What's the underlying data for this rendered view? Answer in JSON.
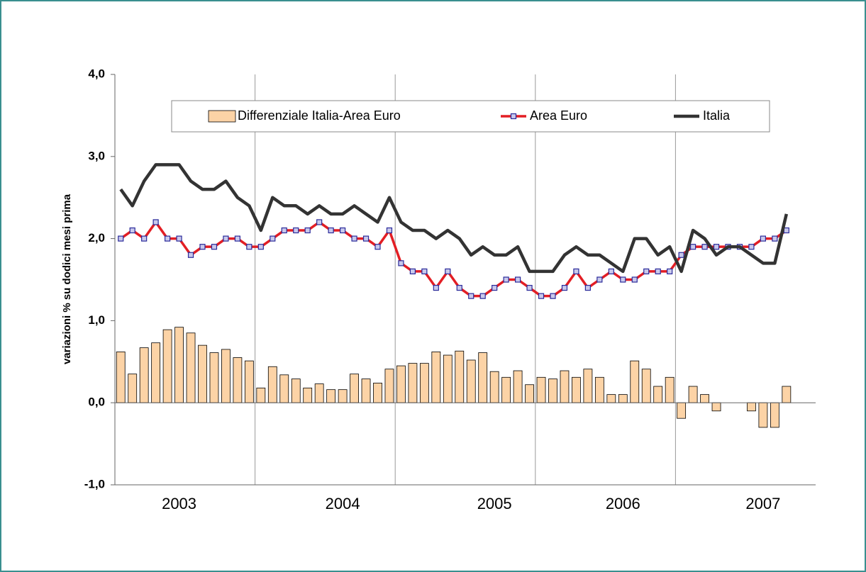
{
  "chart_data": {
    "type": "bar-line",
    "y_label": "variazioni % su dodici mesi prima",
    "categories": [
      null,
      null,
      null,
      null,
      null,
      "2003",
      null,
      null,
      null,
      null,
      null,
      null,
      null,
      null,
      null,
      null,
      null,
      null,
      null,
      "2004",
      null,
      null,
      null,
      null,
      null,
      null,
      null,
      null,
      null,
      null,
      null,
      null,
      "2005",
      null,
      null,
      null,
      null,
      null,
      null,
      null,
      null,
      null,
      null,
      "2006",
      null,
      null,
      null,
      null,
      null,
      null,
      null,
      null,
      null,
      null,
      null,
      "2007",
      null,
      null
    ],
    "series": [
      {
        "name": "Differenziale Italia-Area Euro",
        "kind": "bar",
        "color": "#fcd3a6",
        "values": [
          0.62,
          0.35,
          0.67,
          0.73,
          0.89,
          0.92,
          0.85,
          0.7,
          0.61,
          0.65,
          0.55,
          0.51,
          0.18,
          0.44,
          0.34,
          0.29,
          0.18,
          0.23,
          0.16,
          0.16,
          0.35,
          0.29,
          0.24,
          0.41,
          0.45,
          0.48,
          0.48,
          0.62,
          0.58,
          0.63,
          0.52,
          0.61,
          0.38,
          0.31,
          0.39,
          0.22,
          0.31,
          0.29,
          0.39,
          0.31,
          0.41,
          0.31,
          0.1,
          0.1,
          0.51,
          0.41,
          0.2,
          0.31,
          -0.19,
          0.2,
          0.1,
          -0.1,
          0,
          0,
          -0.1,
          -0.3,
          -0.3,
          0.2
        ]
      },
      {
        "name": "Area Euro",
        "kind": "line-marker",
        "color": "#e31e24",
        "values": [
          2.0,
          2.1,
          2.0,
          2.2,
          2.0,
          2.0,
          1.8,
          1.9,
          1.9,
          2.0,
          2.0,
          1.9,
          1.9,
          2.0,
          2.1,
          2.1,
          2.1,
          2.2,
          2.1,
          2.1,
          2.0,
          2.0,
          1.9,
          2.1,
          1.7,
          1.6,
          1.6,
          1.4,
          1.6,
          1.4,
          1.3,
          1.3,
          1.4,
          1.5,
          1.5,
          1.4,
          1.3,
          1.3,
          1.4,
          1.6,
          1.4,
          1.5,
          1.6,
          1.5,
          1.5,
          1.6,
          1.6,
          1.6,
          1.8,
          1.9,
          1.9,
          1.9,
          1.9,
          1.9,
          1.9,
          2.0,
          2.0,
          2.1
        ]
      },
      {
        "name": "Italia",
        "kind": "line",
        "color": "#333333",
        "values": [
          2.6,
          2.4,
          2.7,
          2.9,
          2.9,
          2.9,
          2.7,
          2.6,
          2.6,
          2.7,
          2.5,
          2.4,
          2.1,
          2.5,
          2.4,
          2.4,
          2.3,
          2.4,
          2.3,
          2.3,
          2.4,
          2.3,
          2.2,
          2.5,
          2.2,
          2.1,
          2.1,
          2.0,
          2.1,
          2.0,
          1.8,
          1.9,
          1.8,
          1.8,
          1.9,
          1.6,
          1.6,
          1.6,
          1.8,
          1.9,
          1.8,
          1.8,
          1.7,
          1.6,
          2.0,
          2.0,
          1.8,
          1.9,
          1.6,
          2.1,
          2.0,
          1.8,
          1.9,
          1.9,
          1.8,
          1.7,
          1.7,
          2.3
        ]
      }
    ],
    "ylim": [
      -1,
      4
    ],
    "yticks": [
      {
        "value": -1,
        "label": "-1,0"
      },
      {
        "value": 0,
        "label": "0,0"
      },
      {
        "value": 1,
        "label": "1,0"
      },
      {
        "value": 2,
        "label": "2,0"
      },
      {
        "value": 3,
        "label": "3,0"
      },
      {
        "value": 4,
        "label": "4,0"
      }
    ],
    "legend": "top"
  }
}
